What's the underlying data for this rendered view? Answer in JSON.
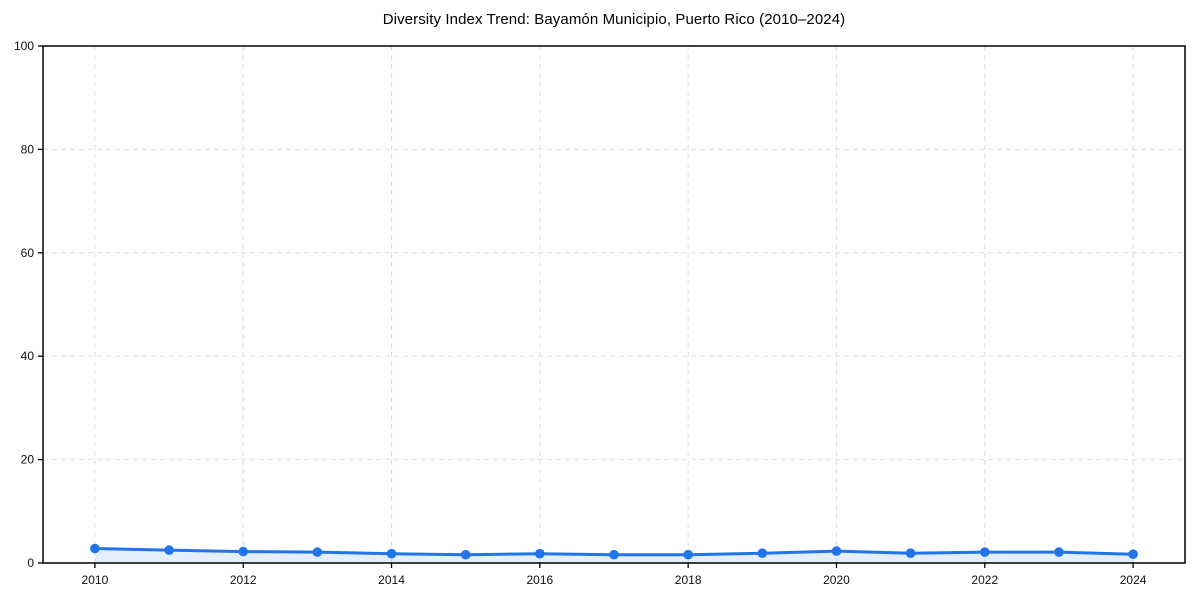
{
  "chart_data": {
    "type": "line",
    "title": "Diversity Index Trend: Bayamón Municipio, Puerto Rico (2010–2024)",
    "xlabel": "",
    "ylabel": "",
    "x": [
      2010,
      2011,
      2012,
      2013,
      2014,
      2015,
      2016,
      2017,
      2018,
      2019,
      2020,
      2021,
      2022,
      2023,
      2024
    ],
    "series": [
      {
        "name": "Diversity Index",
        "values": [
          2.8,
          2.5,
          2.2,
          2.1,
          1.8,
          1.6,
          1.8,
          1.6,
          1.6,
          1.9,
          2.3,
          1.9,
          2.1,
          2.1,
          1.7
        ]
      }
    ],
    "xticks": [
      2010,
      2012,
      2014,
      2016,
      2018,
      2020,
      2022,
      2024
    ],
    "yticks": [
      0,
      20,
      40,
      60,
      80,
      100
    ],
    "xlim": [
      2009.3,
      2024.7
    ],
    "ylim": [
      0,
      100
    ],
    "grid": true,
    "legend": "none",
    "colors": {
      "line": "#2275e8",
      "marker": "#2275e8",
      "fill": "#2275e8",
      "fill_opacity": "0.12",
      "grid": "#dedede",
      "axis": "#000000",
      "tick_text": "#111111"
    }
  }
}
